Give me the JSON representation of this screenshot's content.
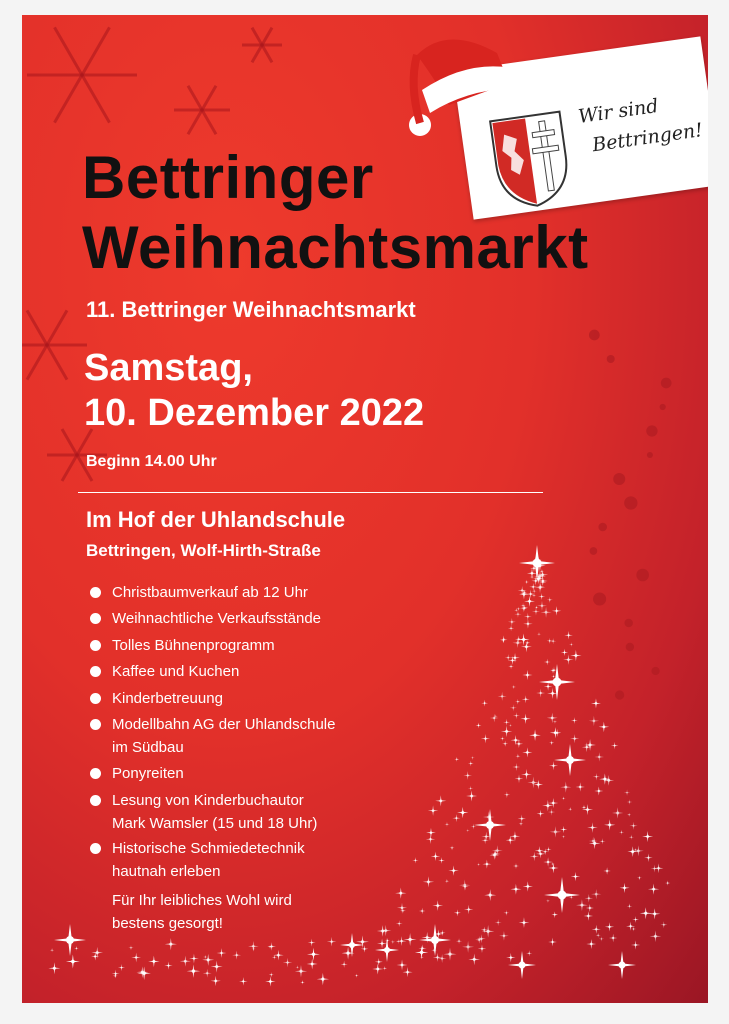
{
  "poster": {
    "title": [
      "Bettringer",
      "Weihnachtsmarkt"
    ],
    "logo_text": [
      "Wir sind",
      "Bettringen!"
    ],
    "subtitle": "11. Bettringer Weihnachtsmarkt",
    "date": [
      "Samstag,",
      "10. Dezember 2022"
    ],
    "start": "Beginn 14.00 Uhr",
    "location": "Im Hof der Uhlandschule",
    "address": "Bettringen, Wolf-Hirth-Straße",
    "items": [
      [
        "Christbaumverkauf ab 12 Uhr"
      ],
      [
        "Weihnachtliche Verkaufsstände"
      ],
      [
        "Tolles Bühnenprogramm"
      ],
      [
        "Kaffee und Kuchen"
      ],
      [
        "Kinderbetreuung"
      ],
      [
        "Modellbahn AG der Uhlandschule",
        "im Südbau"
      ],
      [
        "Ponyreiten"
      ],
      [
        "Lesung von Kinderbuchautor",
        "Mark Wamsler (15 und 18 Uhr)"
      ],
      [
        "Historische Schmiedetechnik",
        "hautnah erleben"
      ]
    ],
    "note": [
      "Für Ihr leibliches Wohl wird",
      "bestens gesorgt!"
    ]
  }
}
